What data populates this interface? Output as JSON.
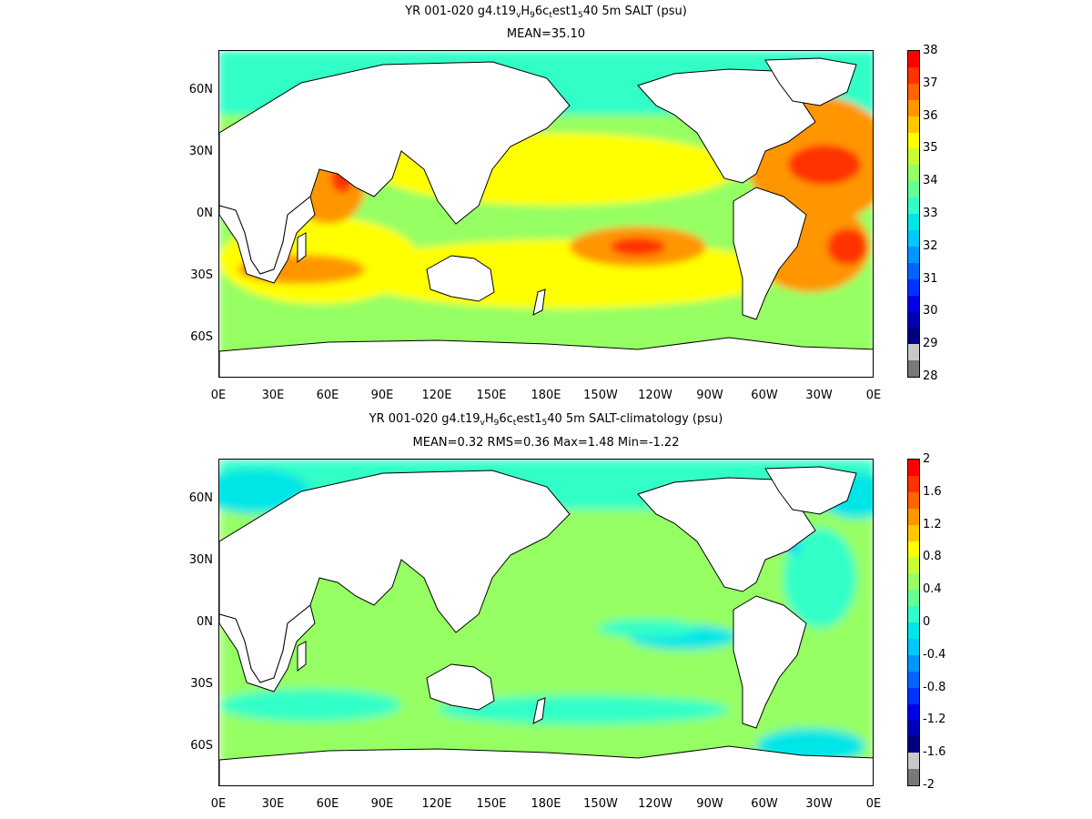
{
  "panels": [
    {
      "id": "top",
      "title_pre": "YR 001-020 g4.t19",
      "title_sub1": "v",
      "title_mid1": "H",
      "title_sub2": "9",
      "title_mid2": "6c",
      "title_sub3": "t",
      "title_mid3": "est1",
      "title_sub4": "5",
      "title_post": "40 5m SALT (psu)",
      "subtitle": "MEAN=35.10",
      "colorbar": {
        "labels": [
          "38",
          "37",
          "36",
          "35",
          "34",
          "33",
          "32",
          "31",
          "30",
          "29",
          "28"
        ],
        "colors": [
          "#ff0000",
          "#ff3200",
          "#ff6400",
          "#ff9600",
          "#ffc800",
          "#ffff00",
          "#c8ff32",
          "#96ff64",
          "#64ff96",
          "#32ffc8",
          "#00e6e6",
          "#00c8ff",
          "#0096ff",
          "#0064ff",
          "#0032ff",
          "#0000e6",
          "#0000b4",
          "#000080",
          "#c8c8c8",
          "#787878"
        ]
      },
      "field_colors": {
        "background": "#96ff64",
        "north": "#32ffc8",
        "south_ocean": "#96ff64",
        "subtropics": "#ffff00",
        "high": "#ff9600",
        "very_high": "#ff3200"
      }
    },
    {
      "id": "bottom",
      "title_pre": "YR 001-020 g4.t19",
      "title_sub1": "v",
      "title_mid1": "H",
      "title_sub2": "9",
      "title_mid2": "6c",
      "title_sub3": "t",
      "title_mid3": "est1",
      "title_sub4": "5",
      "title_post": "40 5m SALT-climatology (psu)",
      "subtitle": "MEAN=0.32   RMS=0.36   Max=1.48   Min=-1.22",
      "colorbar": {
        "labels": [
          "2",
          "1.6",
          "1.2",
          "0.8",
          "0.4",
          "0",
          "-0.4",
          "-0.8",
          "-1.2",
          "-1.6",
          "-2"
        ],
        "colors": [
          "#ff0000",
          "#ff3200",
          "#ff6400",
          "#ff9600",
          "#ffc800",
          "#ffff00",
          "#c8ff32",
          "#96ff64",
          "#64ff96",
          "#32ffc8",
          "#00e6e6",
          "#00c8ff",
          "#0096ff",
          "#0064ff",
          "#0032ff",
          "#0000e6",
          "#0000b4",
          "#000080",
          "#c8c8c8",
          "#787878"
        ]
      },
      "field_colors": {
        "background": "#96ff64",
        "anomaly_low": "#32ffc8",
        "anomaly_lower": "#00e6e6",
        "anomaly_lowest": "#00c8ff"
      }
    }
  ],
  "axes": {
    "x_ticks": [
      "0E",
      "30E",
      "60E",
      "90E",
      "120E",
      "150E",
      "180E",
      "150W",
      "120W",
      "90W",
      "60W",
      "30W",
      "0E"
    ],
    "y_ticks": [
      "60N",
      "30N",
      "0N",
      "30S",
      "60S"
    ]
  },
  "land_color": "#ffffff",
  "coast_color": "#000000"
}
